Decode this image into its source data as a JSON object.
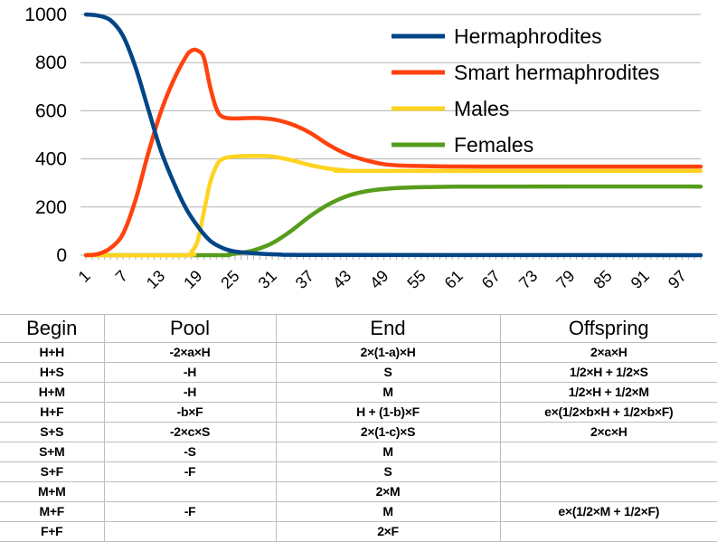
{
  "chart_data": {
    "type": "line",
    "title": "",
    "xlabel": "",
    "ylabel": "",
    "x_range": [
      1,
      100
    ],
    "x_tick_labels": [
      "1",
      "7",
      "13",
      "19",
      "25",
      "31",
      "37",
      "43",
      "49",
      "55",
      "61",
      "67",
      "73",
      "79",
      "85",
      "91",
      "97"
    ],
    "ylim": [
      0,
      1000
    ],
    "y_tick_labels": [
      "0",
      "200",
      "400",
      "600",
      "800",
      "1000"
    ],
    "grid": "horizontal",
    "legend": "top-right",
    "series": [
      {
        "name": "Hermaphrodites",
        "color": "#004586",
        "points": [
          [
            1,
            1000
          ],
          [
            3,
            995
          ],
          [
            5,
            975
          ],
          [
            7,
            910
          ],
          [
            9,
            780
          ],
          [
            11,
            610
          ],
          [
            13,
            440
          ],
          [
            15,
            310
          ],
          [
            17,
            200
          ],
          [
            19,
            120
          ],
          [
            21,
            60
          ],
          [
            23,
            30
          ],
          [
            25,
            15
          ],
          [
            28,
            8
          ],
          [
            32,
            3
          ],
          [
            40,
            1
          ],
          [
            100,
            0
          ]
        ]
      },
      {
        "name": "Smart hermaphrodites",
        "color": "#ff420e",
        "points": [
          [
            1,
            0
          ],
          [
            3,
            5
          ],
          [
            5,
            30
          ],
          [
            7,
            90
          ],
          [
            9,
            230
          ],
          [
            11,
            420
          ],
          [
            13,
            590
          ],
          [
            15,
            720
          ],
          [
            17,
            820
          ],
          [
            18,
            850
          ],
          [
            19,
            850
          ],
          [
            20,
            820
          ],
          [
            21,
            700
          ],
          [
            22,
            610
          ],
          [
            23,
            575
          ],
          [
            25,
            568
          ],
          [
            28,
            570
          ],
          [
            31,
            565
          ],
          [
            34,
            545
          ],
          [
            37,
            510
          ],
          [
            40,
            460
          ],
          [
            43,
            420
          ],
          [
            46,
            395
          ],
          [
            49,
            378
          ],
          [
            52,
            372
          ],
          [
            56,
            370
          ],
          [
            65,
            368
          ],
          [
            100,
            368
          ]
        ]
      },
      {
        "name": "Males",
        "color": "#ffd320",
        "points": [
          [
            1,
            0
          ],
          [
            17,
            0
          ],
          [
            18,
            15
          ],
          [
            19,
            60
          ],
          [
            20,
            180
          ],
          [
            21,
            300
          ],
          [
            22,
            370
          ],
          [
            23,
            400
          ],
          [
            25,
            410
          ],
          [
            28,
            412
          ],
          [
            31,
            410
          ],
          [
            34,
            395
          ],
          [
            37,
            375
          ],
          [
            40,
            360
          ],
          [
            43,
            352
          ],
          [
            46,
            350
          ],
          [
            100,
            350
          ]
        ]
      },
      {
        "name": "Females",
        "color": "#579d1c",
        "points": [
          [
            1,
            0
          ],
          [
            22,
            0
          ],
          [
            24,
            3
          ],
          [
            26,
            10
          ],
          [
            28,
            20
          ],
          [
            31,
            50
          ],
          [
            34,
            100
          ],
          [
            37,
            160
          ],
          [
            40,
            210
          ],
          [
            43,
            245
          ],
          [
            46,
            265
          ],
          [
            49,
            275
          ],
          [
            52,
            280
          ],
          [
            56,
            283
          ],
          [
            65,
            285
          ],
          [
            100,
            285
          ]
        ]
      }
    ]
  },
  "table": {
    "headers": [
      "Begin",
      "Pool",
      "End",
      "Offspring"
    ],
    "rows": [
      [
        "H+H",
        "-2×a×H",
        "2×(1-a)×H",
        "2×a×H"
      ],
      [
        "H+S",
        "-H",
        "S",
        "1/2×H + 1/2×S"
      ],
      [
        "H+M",
        "-H",
        "M",
        "1/2×H + 1/2×M"
      ],
      [
        "H+F",
        "-b×F",
        "H + (1-b)×F",
        "e×(1/2×b×H + 1/2×b×F)"
      ],
      [
        "S+S",
        "-2×c×S",
        "2×(1-c)×S",
        "2×c×H"
      ],
      [
        "S+M",
        "-S",
        "M",
        ""
      ],
      [
        "S+F",
        "-F",
        "S",
        ""
      ],
      [
        "M+M",
        "",
        "2×M",
        ""
      ],
      [
        "M+F",
        "-F",
        "M",
        "e×(1/2×M + 1/2×F)"
      ],
      [
        "F+F",
        "",
        "2×F",
        ""
      ]
    ]
  }
}
